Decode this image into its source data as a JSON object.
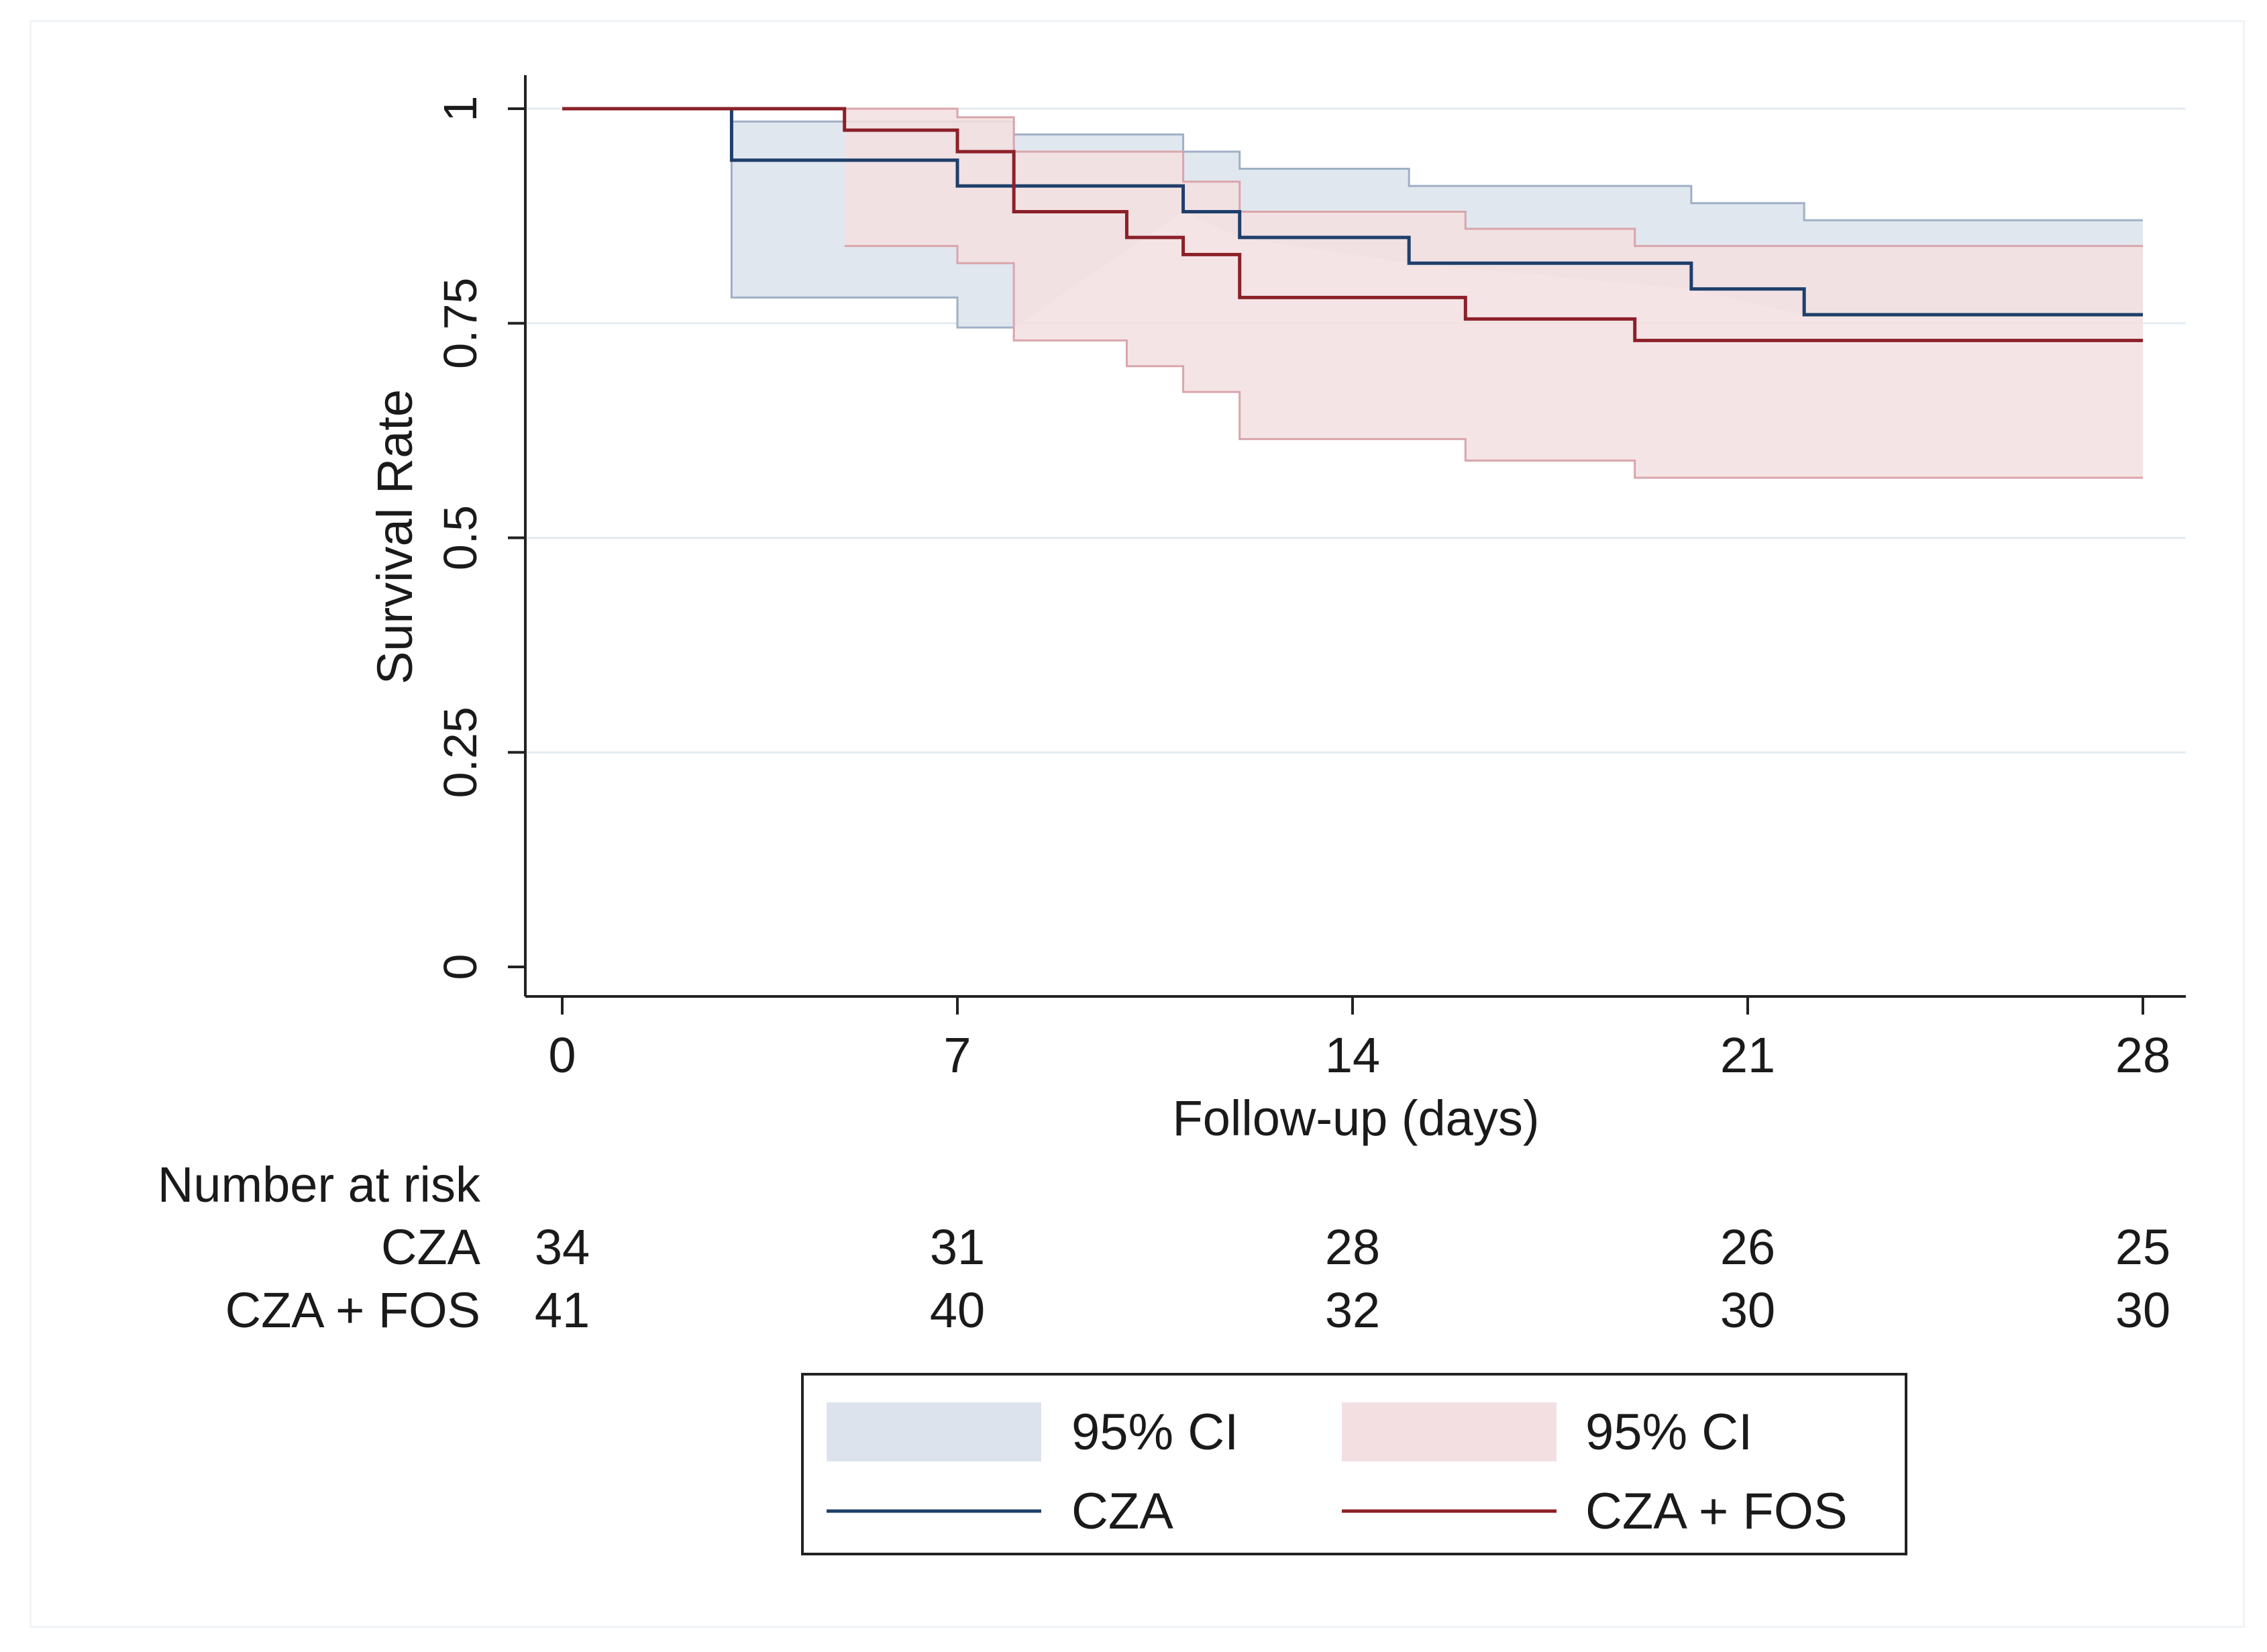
{
  "chart_data": {
    "type": "step",
    "xlabel": "Follow-up (days)",
    "ylabel": "Survival Rate",
    "xlim": [
      0,
      28
    ],
    "ylim": [
      0,
      1
    ],
    "x_ticks": [
      "0",
      "7",
      "14",
      "21",
      "28"
    ],
    "y_ticks": [
      "0",
      "0.25",
      "0.5",
      "0.75",
      "1"
    ],
    "grid": true,
    "series": [
      {
        "name": "CZA",
        "color": "#1f3f6b",
        "ci_fill": "#dce3ec",
        "ci_stroke": "#9fb0c6",
        "steps": [
          [
            0,
            1
          ],
          [
            3,
            0.94
          ],
          [
            7,
            0.91
          ],
          [
            11,
            0.88
          ],
          [
            12,
            0.85
          ],
          [
            15,
            0.82
          ],
          [
            20,
            0.79
          ],
          [
            22,
            0.76
          ],
          [
            28,
            0.76
          ]
        ],
        "ci_upper": [
          [
            3,
            1
          ],
          [
            3,
            0.985
          ],
          [
            8,
            0.985
          ],
          [
            8,
            0.97
          ],
          [
            11,
            0.97
          ],
          [
            11,
            0.95
          ],
          [
            12,
            0.95
          ],
          [
            12,
            0.93
          ],
          [
            15,
            0.93
          ],
          [
            15,
            0.91
          ],
          [
            20,
            0.91
          ],
          [
            20,
            0.89
          ],
          [
            22,
            0.89
          ],
          [
            22,
            0.87
          ],
          [
            28,
            0.87
          ]
        ],
        "ci_lower": [
          [
            3,
            1
          ],
          [
            3,
            0.78
          ],
          [
            7,
            0.78
          ],
          [
            7,
            0.745
          ],
          [
            8,
            0.745
          ],
          [
            8,
            0.745
          ]
        ]
      },
      {
        "name": "CZA + FOS",
        "color": "#8b2028",
        "ci_fill": "#f3dfe1",
        "ci_stroke": "#d9a5ab",
        "steps": [
          [
            0,
            1
          ],
          [
            5,
            0.975
          ],
          [
            7,
            0.95
          ],
          [
            8,
            0.88
          ],
          [
            10,
            0.85
          ],
          [
            11,
            0.83
          ],
          [
            12,
            0.78
          ],
          [
            16,
            0.755
          ],
          [
            19,
            0.73
          ],
          [
            28,
            0.73
          ]
        ],
        "ci_upper": [
          [
            5,
            1
          ],
          [
            7,
            1
          ],
          [
            7,
            0.99
          ],
          [
            8,
            0.99
          ],
          [
            8,
            0.95
          ],
          [
            11,
            0.95
          ],
          [
            11,
            0.915
          ],
          [
            12,
            0.915
          ],
          [
            12,
            0.88
          ],
          [
            16,
            0.88
          ],
          [
            16,
            0.86
          ],
          [
            19,
            0.86
          ],
          [
            19,
            0.84
          ],
          [
            28,
            0.84
          ]
        ],
        "ci_lower": [
          [
            5,
            0.84
          ],
          [
            7,
            0.84
          ],
          [
            7,
            0.82
          ],
          [
            8,
            0.82
          ],
          [
            8,
            0.73
          ],
          [
            10,
            0.73
          ],
          [
            10,
            0.7
          ],
          [
            11,
            0.7
          ],
          [
            11,
            0.67
          ],
          [
            12,
            0.67
          ],
          [
            12,
            0.615
          ],
          [
            16,
            0.615
          ],
          [
            16,
            0.59
          ],
          [
            19,
            0.59
          ],
          [
            19,
            0.57
          ],
          [
            28,
            0.57
          ]
        ]
      }
    ],
    "risk_table": {
      "title": "Number at risk",
      "rows": [
        {
          "label": "CZA",
          "values": [
            "34",
            "31",
            "28",
            "26",
            "25"
          ]
        },
        {
          "label": "CZA + FOS",
          "values": [
            "41",
            "40",
            "32",
            "30",
            "30"
          ]
        }
      ]
    },
    "legend": {
      "position": "bottom",
      "items": [
        {
          "label": "95% CI",
          "kind": "band",
          "color": "#dce3ec"
        },
        {
          "label": "95% CI",
          "kind": "band",
          "color": "#f3dfe1"
        },
        {
          "label": "CZA",
          "kind": "line",
          "color": "#1f3f6b"
        },
        {
          "label": "CZA + FOS",
          "kind": "line",
          "color": "#8b2028"
        }
      ]
    }
  }
}
